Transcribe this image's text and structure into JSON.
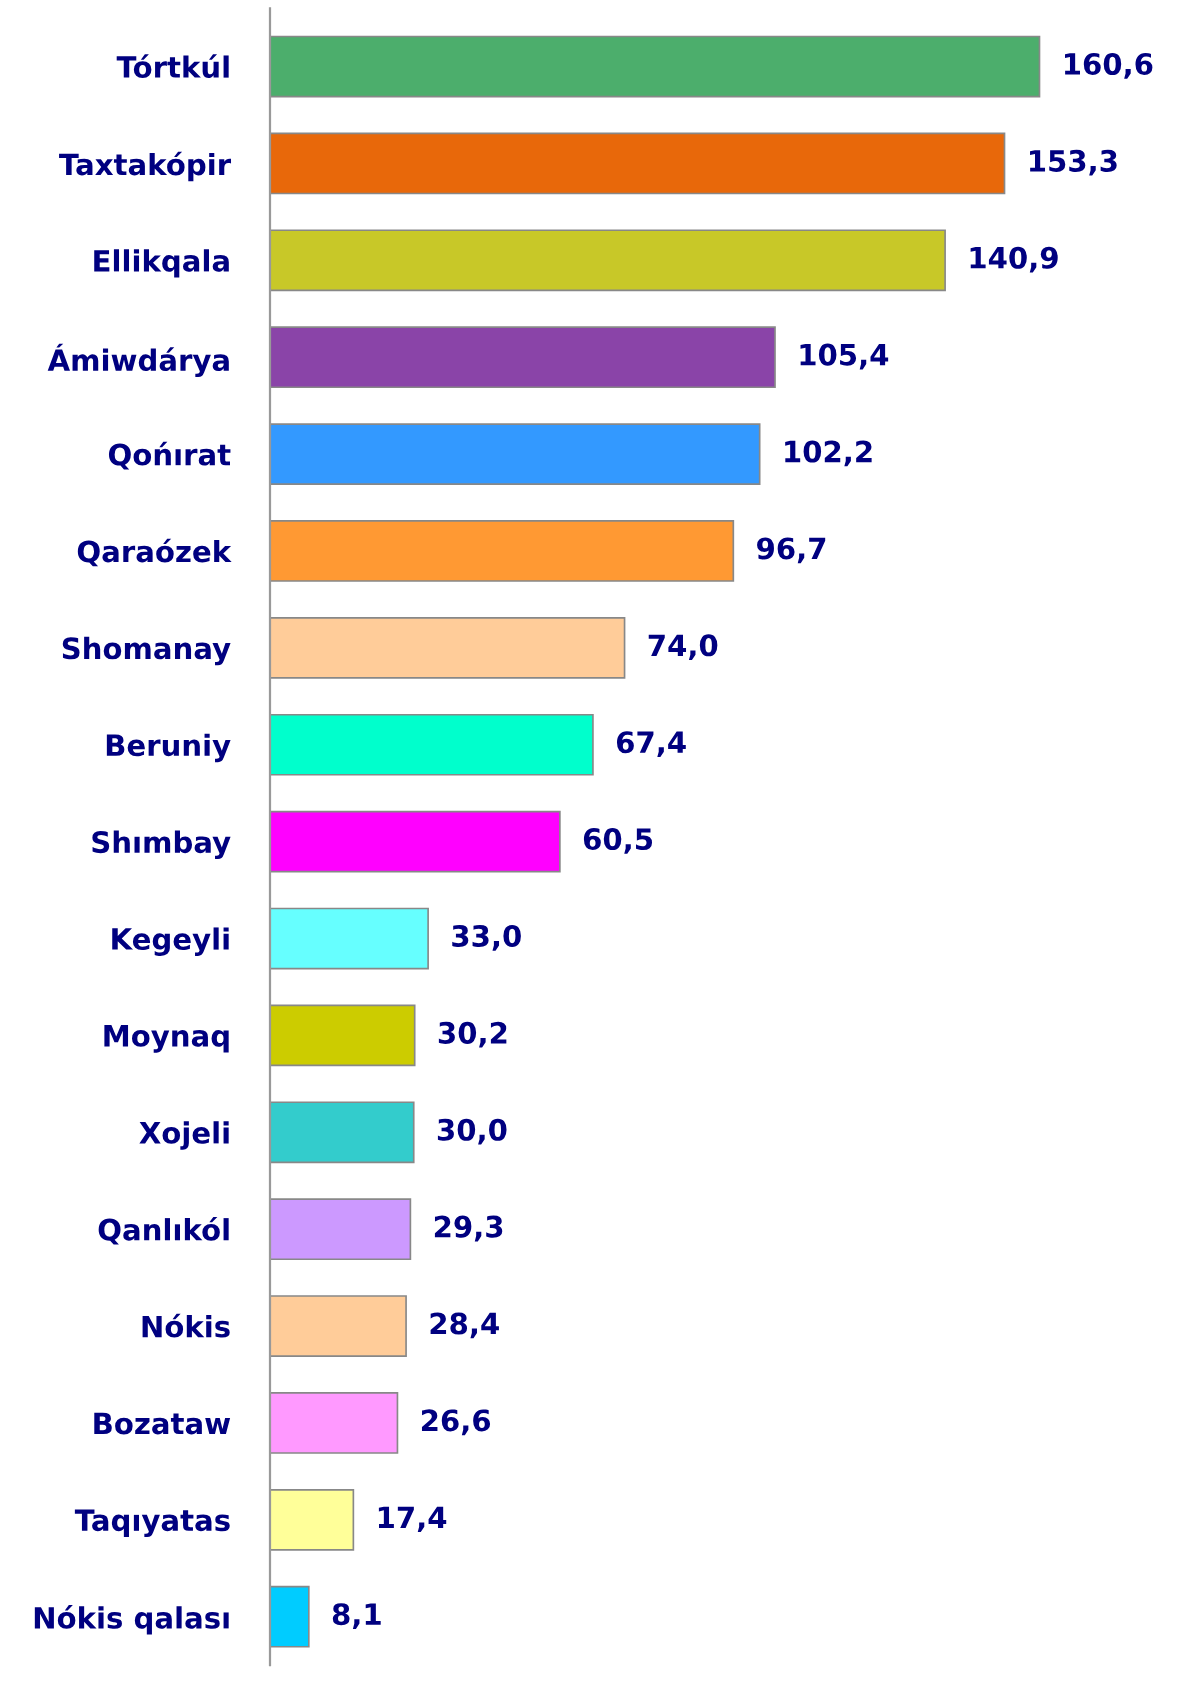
{
  "chart_data": {
    "type": "bar",
    "orientation": "horizontal",
    "categories": [
      "Tórtkúl",
      "Taxtakópir",
      "Ellikqala",
      "Ámiwdárya",
      "Qońırat",
      "Qaraózek",
      "Shomanay",
      "Beruniy",
      "Shımbay",
      "Kegeyli",
      "Moynaq",
      "Xojeli",
      "Qanlıkól",
      "Nókis",
      "Bozataw",
      "Taqıyatas",
      "Nókis qalası"
    ],
    "values": [
      160.6,
      153.3,
      140.9,
      105.4,
      102.2,
      96.7,
      74.0,
      67.4,
      60.5,
      33.0,
      30.2,
      30.0,
      29.3,
      28.4,
      26.6,
      17.4,
      8.1
    ],
    "value_labels": [
      "160,6",
      "153,3",
      "140,9",
      "105,4",
      "102,2",
      "96,7",
      "74,0",
      "67,4",
      "60,5",
      "33,0",
      "30,2",
      "30,0",
      "29,3",
      "28,4",
      "26,6",
      "17,4",
      "8,1"
    ],
    "colors": [
      "#4cae6c",
      "#e8680a",
      "#c8c828",
      "#8a44a8",
      "#3399ff",
      "#ff9933",
      "#ffcc99",
      "#00ffcc",
      "#ff00ff",
      "#66ffff",
      "#cccc00",
      "#33cccc",
      "#cc99ff",
      "#ffcc99",
      "#ff99ff",
      "#ffff99",
      "#00ccff"
    ],
    "grid": false,
    "legend": false
  }
}
